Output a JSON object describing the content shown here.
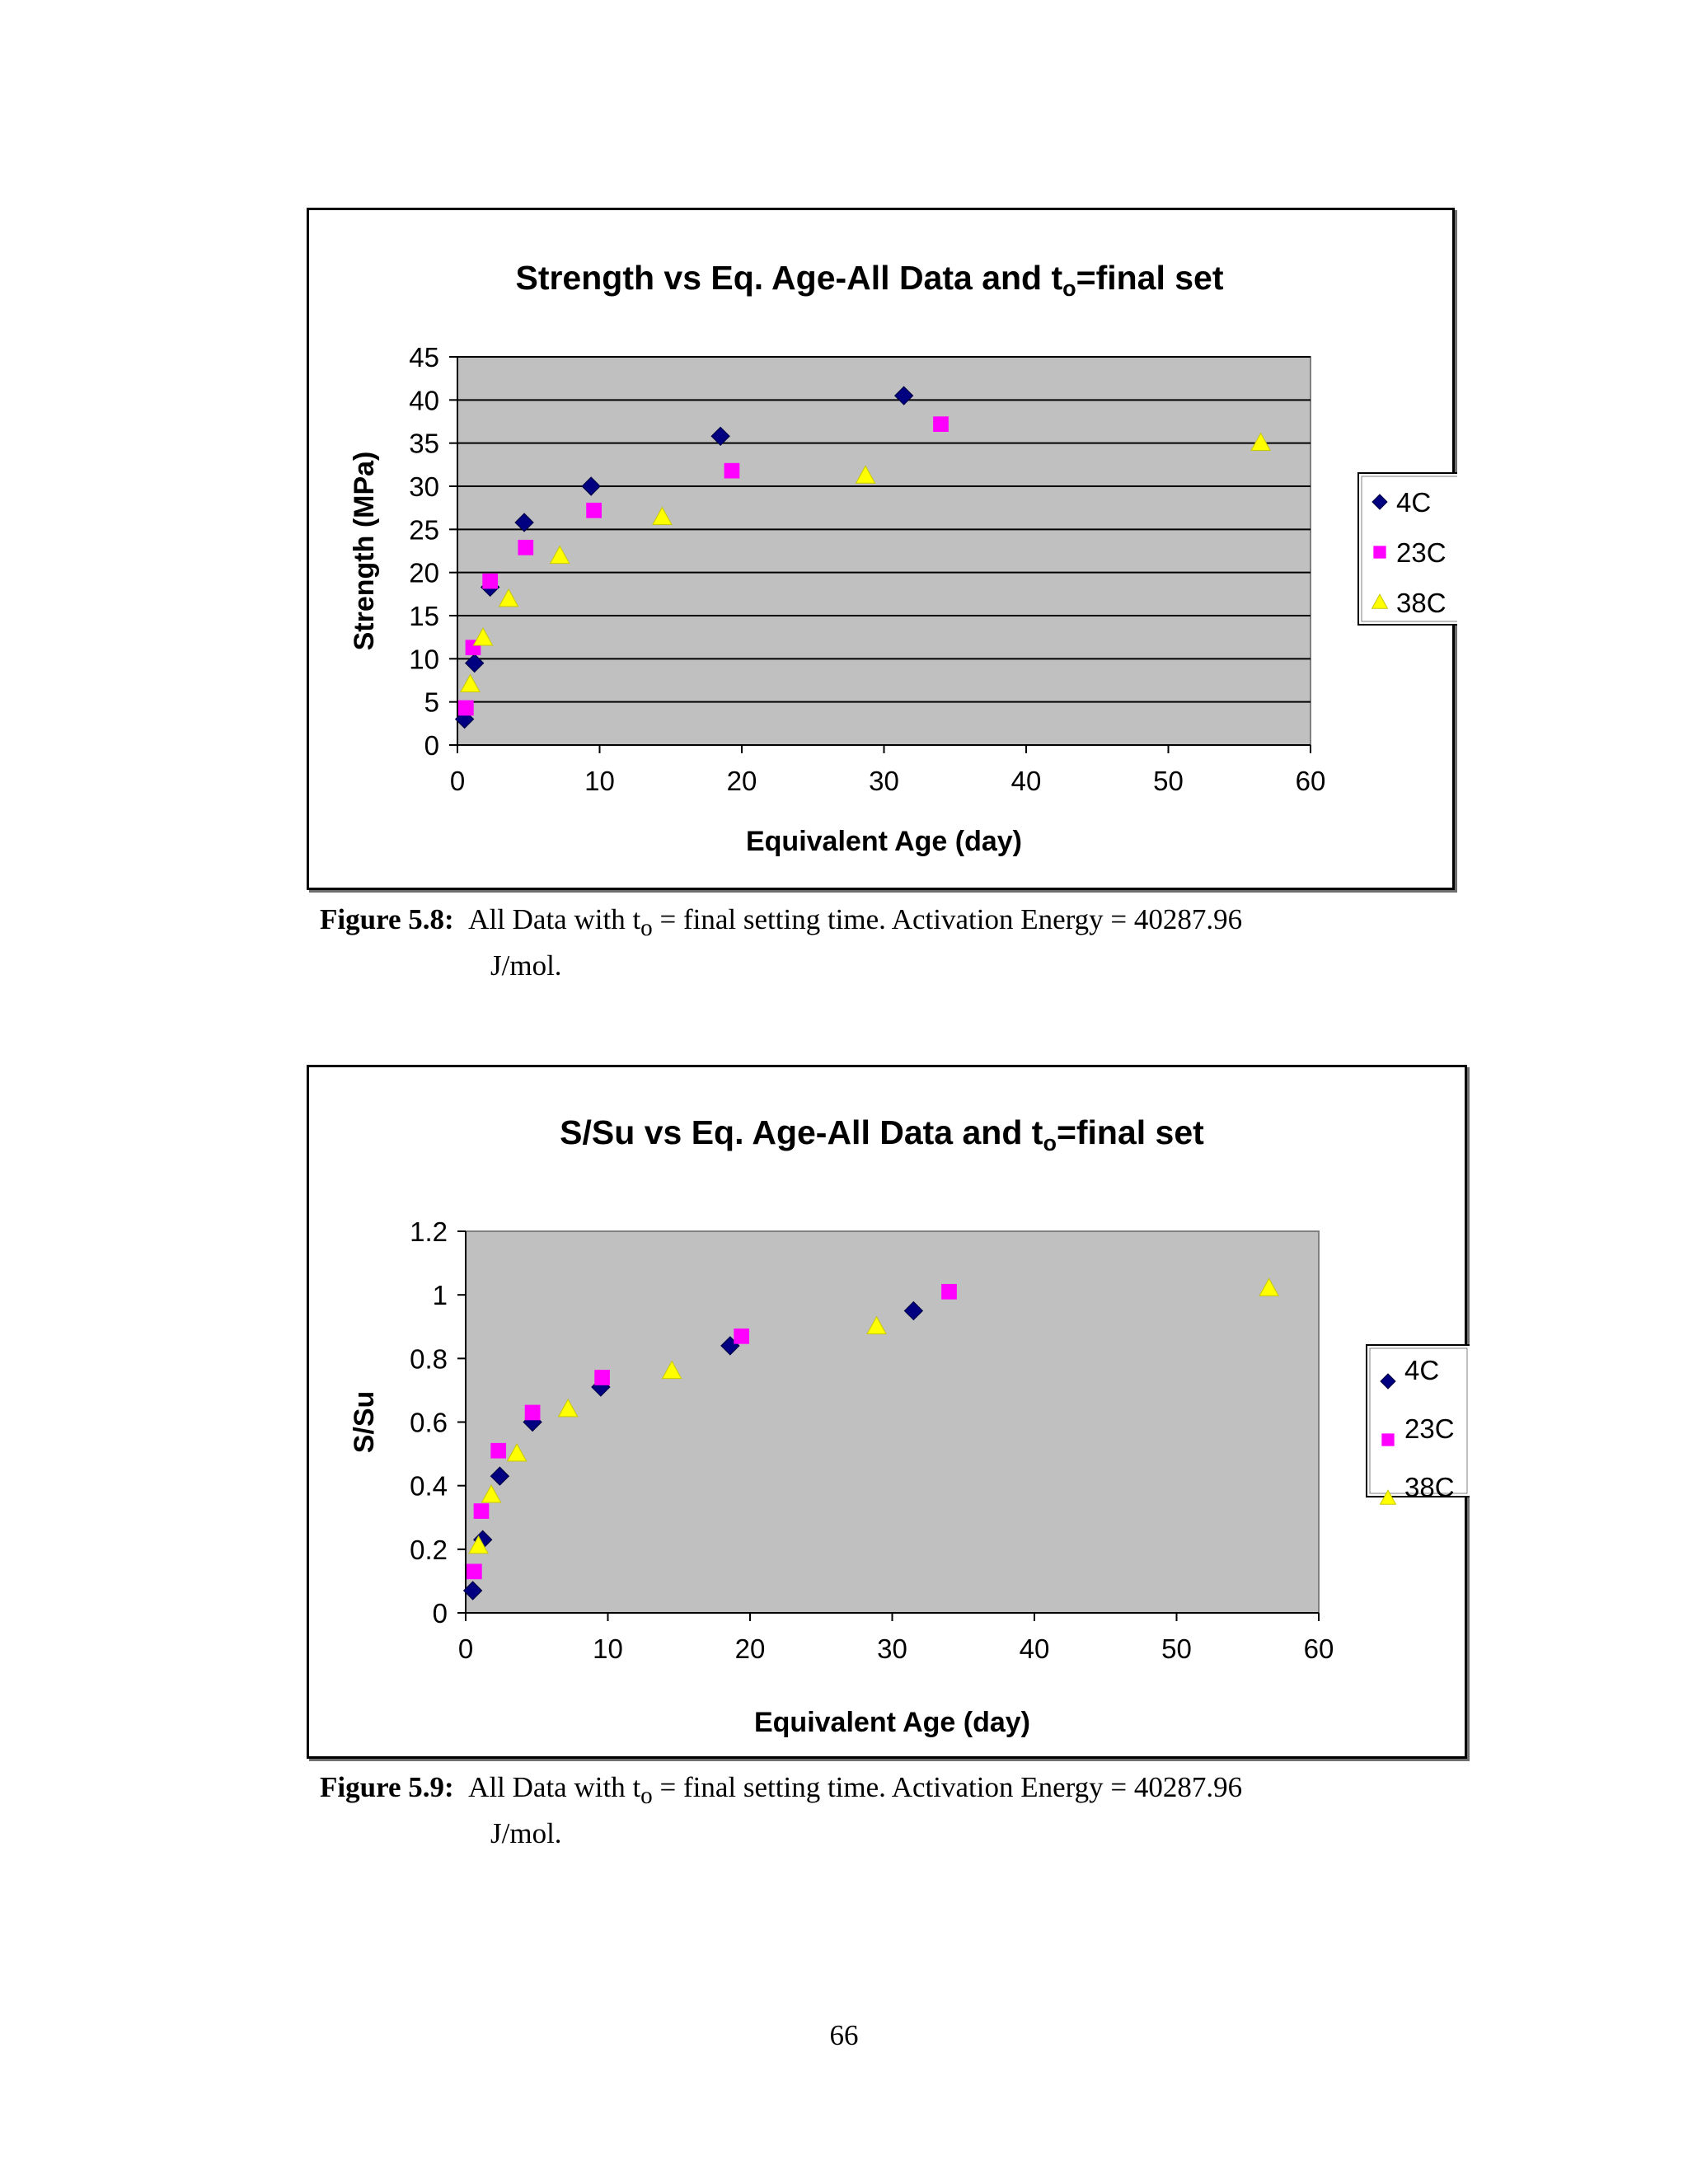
{
  "chart_data": [
    {
      "type": "scatter",
      "title": "Strength vs Eq. Age-All Data and t",
      "title_subscript": "o",
      "title_suffix": "=final set",
      "xlabel": "Equivalent Age (day)",
      "ylabel": "Strength (MPa)",
      "xlim": [
        0,
        60
      ],
      "ylim": [
        0,
        45
      ],
      "x_ticks": [
        "0",
        "10",
        "20",
        "30",
        "40",
        "50",
        "60"
      ],
      "y_ticks": [
        "0",
        "5",
        "10",
        "15",
        "20",
        "25",
        "30",
        "35",
        "40",
        "45"
      ],
      "grid": "horizontal",
      "legend_position": "right",
      "series": [
        {
          "name": "4C",
          "marker": "diamond",
          "color": "#000080",
          "x": [
            0.5,
            1.2,
            2.3,
            4.7,
            9.4,
            18.5,
            31.4
          ],
          "y": [
            3.0,
            9.5,
            18.3,
            25.8,
            30.0,
            35.8,
            40.5
          ]
        },
        {
          "name": "23C",
          "marker": "square",
          "color": "#FF00FF",
          "x": [
            0.6,
            1.1,
            2.3,
            4.8,
            9.6,
            19.3,
            34.0
          ],
          "y": [
            4.3,
            11.3,
            19.0,
            22.9,
            27.2,
            31.8,
            37.2
          ]
        },
        {
          "name": "38C",
          "marker": "triangle",
          "color": "#FFFF00",
          "x": [
            0.9,
            1.8,
            3.6,
            7.2,
            14.4,
            28.7,
            56.5
          ],
          "y": [
            7.0,
            12.4,
            16.9,
            21.9,
            26.4,
            31.2,
            35.0
          ]
        }
      ]
    },
    {
      "type": "scatter",
      "title": "S/Su vs Eq. Age-All Data and t",
      "title_subscript": "o",
      "title_suffix": "=final set",
      "xlabel": "Equivalent Age (day)",
      "ylabel": "S/Su",
      "xlim": [
        0,
        60
      ],
      "ylim": [
        0,
        1.2
      ],
      "x_ticks": [
        "0",
        "10",
        "20",
        "30",
        "40",
        "50",
        "60"
      ],
      "y_ticks": [
        "0",
        "0.2",
        "0.4",
        "0.6",
        "0.8",
        "1",
        "1.2"
      ],
      "grid": "none",
      "legend_position": "right",
      "series": [
        {
          "name": "4C",
          "marker": "diamond",
          "color": "#000080",
          "x": [
            0.5,
            1.2,
            2.4,
            4.7,
            9.5,
            18.6,
            31.5
          ],
          "y": [
            0.07,
            0.23,
            0.43,
            0.6,
            0.71,
            0.84,
            0.95
          ]
        },
        {
          "name": "23C",
          "marker": "square",
          "color": "#FF00FF",
          "x": [
            0.6,
            1.1,
            2.3,
            4.7,
            9.6,
            19.4,
            34.0
          ],
          "y": [
            0.13,
            0.32,
            0.51,
            0.63,
            0.74,
            0.87,
            1.01
          ]
        },
        {
          "name": "38C",
          "marker": "triangle",
          "color": "#FFFF00",
          "x": [
            0.9,
            1.8,
            3.6,
            7.2,
            14.5,
            28.9,
            56.5
          ],
          "y": [
            0.21,
            0.37,
            0.5,
            0.64,
            0.76,
            0.9,
            1.02
          ]
        }
      ]
    }
  ],
  "captions": [
    {
      "label": "Figure 5.8:",
      "text_before": "All Data with t",
      "subscript": "o",
      "text_after": " = final setting time.  Activation Energy = 40287.96",
      "line2": "J/mol."
    },
    {
      "label": "Figure 5.9:",
      "text_before": "All Data with t",
      "subscript": "o",
      "text_after": " = final setting time.  Activation Energy = 40287.96",
      "line2": "J/mol."
    }
  ],
  "page_number": "66"
}
